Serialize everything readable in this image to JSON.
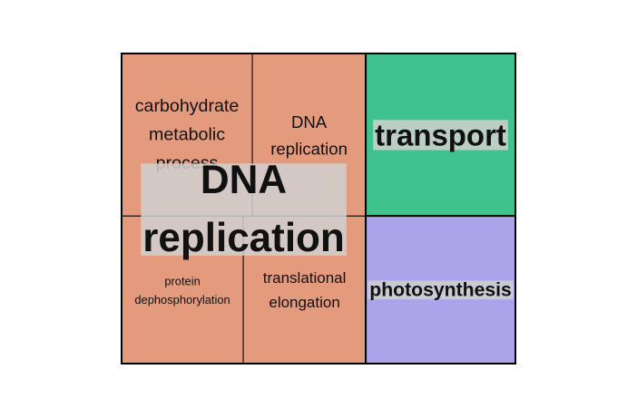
{
  "chart_data": {
    "type": "treemap",
    "columns": [
      [
        {
          "name": "DNA replication",
          "color": "#e49b7d",
          "rows": [
            [
              {
                "name": "carbohydrate metabolic process",
                "value": 17.4
              },
              {
                "name": "DNA replication",
                "value": 15.1
              }
            ],
            [
              {
                "name": "protein dephosphorylation",
                "value": 14.7
              },
              {
                "name": "translational elongation",
                "value": 14.8
              }
            ]
          ]
        }
      ],
      [
        {
          "name": "transport",
          "color": "#40c28e",
          "value": 19.9
        },
        {
          "name": "photosynthesis",
          "color": "#aba4ea",
          "value": 18.1
        }
      ]
    ]
  }
}
